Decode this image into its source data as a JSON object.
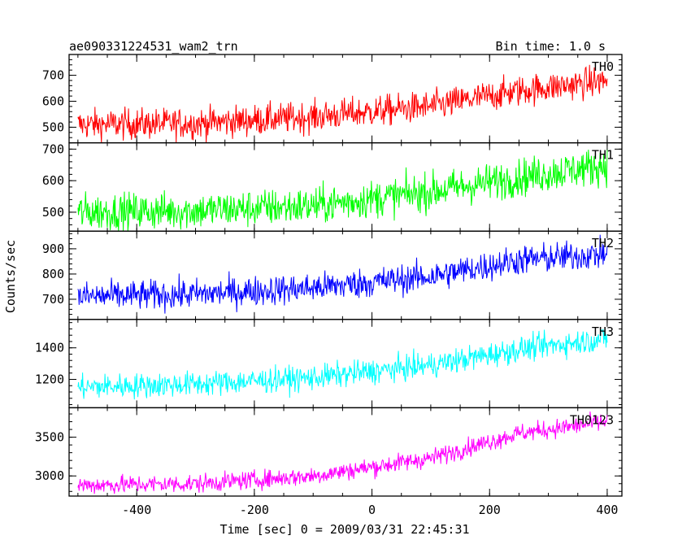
{
  "chart_data": {
    "type": "line",
    "title": "ae090331224531_wam2_trn",
    "bin_time": "Bin time: 1.0 s",
    "xlabel": "Time [sec] 0 = 2009/03/31 22:45:31",
    "ylabel": "Counts/sec",
    "xlim": [
      -515,
      425
    ],
    "x_range": [
      -500,
      400
    ],
    "x_ticks": [
      -400,
      -200,
      0,
      200,
      400
    ],
    "grid": false,
    "panels": [
      {
        "name": "TH0",
        "color": "#ff0000",
        "ylim": [
          440,
          780
        ],
        "y_ticks": [
          500,
          600,
          700
        ],
        "trend": [
          [
            -500,
            510
          ],
          [
            -300,
            515
          ],
          [
            -100,
            540
          ],
          [
            100,
            580
          ],
          [
            250,
            640
          ],
          [
            400,
            680
          ]
        ],
        "noise": 30
      },
      {
        "name": "TH1",
        "color": "#00ff00",
        "ylim": [
          440,
          720
        ],
        "y_ticks": [
          500,
          600,
          700
        ],
        "trend": [
          [
            -500,
            500
          ],
          [
            -300,
            505
          ],
          [
            -100,
            520
          ],
          [
            100,
            565
          ],
          [
            250,
            610
          ],
          [
            400,
            650
          ]
        ],
        "noise": 30
      },
      {
        "name": "TH2",
        "color": "#0000ff",
        "ylim": [
          620,
          970
        ],
        "y_ticks": [
          700,
          800,
          900
        ],
        "trend": [
          [
            -500,
            710
          ],
          [
            -300,
            720
          ],
          [
            -100,
            745
          ],
          [
            100,
            790
          ],
          [
            250,
            855
          ],
          [
            400,
            880
          ]
        ],
        "noise": 30
      },
      {
        "name": "TH3",
        "color": "#00ffff",
        "ylim": [
          1020,
          1580
        ],
        "y_ticks": [
          1200,
          1400
        ],
        "trend": [
          [
            -500,
            1150
          ],
          [
            -300,
            1170
          ],
          [
            -100,
            1210
          ],
          [
            100,
            1290
          ],
          [
            250,
            1390
          ],
          [
            400,
            1460
          ]
        ],
        "noise": 40
      },
      {
        "name": "TH0123",
        "color": "#ff00ff",
        "ylim": [
          2740,
          3880
        ],
        "y_ticks": [
          3000,
          3500
        ],
        "trend": [
          [
            -500,
            2880
          ],
          [
            -300,
            2900
          ],
          [
            -100,
            3000
          ],
          [
            100,
            3230
          ],
          [
            250,
            3550
          ],
          [
            400,
            3700
          ]
        ],
        "noise": 60
      }
    ]
  }
}
